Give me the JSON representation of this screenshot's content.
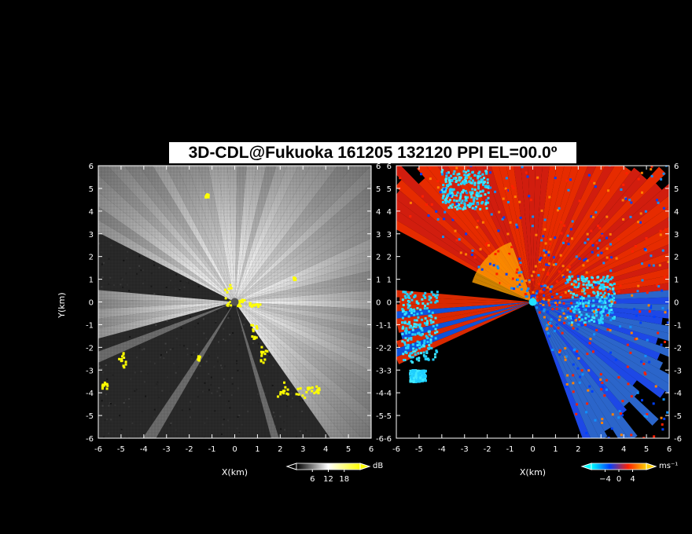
{
  "title": "3D-CDL@Fukuoka 161205 132120 PPI EL=00.0º",
  "chart_data": [
    {
      "type": "heatmap",
      "panel": "reflectivity",
      "xlabel": "X(km)",
      "ylabel": "Y(km)",
      "xlim": [
        -6,
        6
      ],
      "ylim": [
        -6,
        6
      ],
      "xticks": [
        "-6",
        "-5",
        "-4",
        "-3",
        "-2",
        "-1",
        "0",
        "1",
        "2",
        "3",
        "4",
        "5",
        "6"
      ],
      "yticks": [
        "-6",
        "-5",
        "-4",
        "-3",
        "-2",
        "-1",
        "0",
        "1",
        "2",
        "3",
        "4",
        "5",
        "6"
      ],
      "colorbar": {
        "unit": "dB",
        "ticks": [
          "6",
          "12",
          "18"
        ],
        "tick_values": [
          6,
          12,
          18
        ],
        "range": [
          0,
          24
        ],
        "colors": [
          "#000000",
          "#ffffff",
          "#ffff00"
        ]
      }
    },
    {
      "type": "heatmap",
      "panel": "doppler_velocity",
      "xlabel": "X(km)",
      "xlim": [
        -6,
        6
      ],
      "ylim": [
        -6,
        6
      ],
      "xticks": [
        "-6",
        "-5",
        "-4",
        "-3",
        "-2",
        "-1",
        "0",
        "1",
        "2",
        "3",
        "4",
        "5",
        "6"
      ],
      "yticks": [
        "-6",
        "-5",
        "-4",
        "-3",
        "-2",
        "-1",
        "0",
        "1",
        "2",
        "3",
        "4",
        "5",
        "6"
      ],
      "colorbar": {
        "unit": "ms⁻¹",
        "ticks": [
          "−4",
          "0",
          "4"
        ],
        "tick_values": [
          -4,
          0,
          4
        ],
        "range": [
          -8,
          8
        ],
        "colors": [
          "#00ffff",
          "#0040ff",
          "#ff2000",
          "#ffd000"
        ]
      }
    }
  ]
}
